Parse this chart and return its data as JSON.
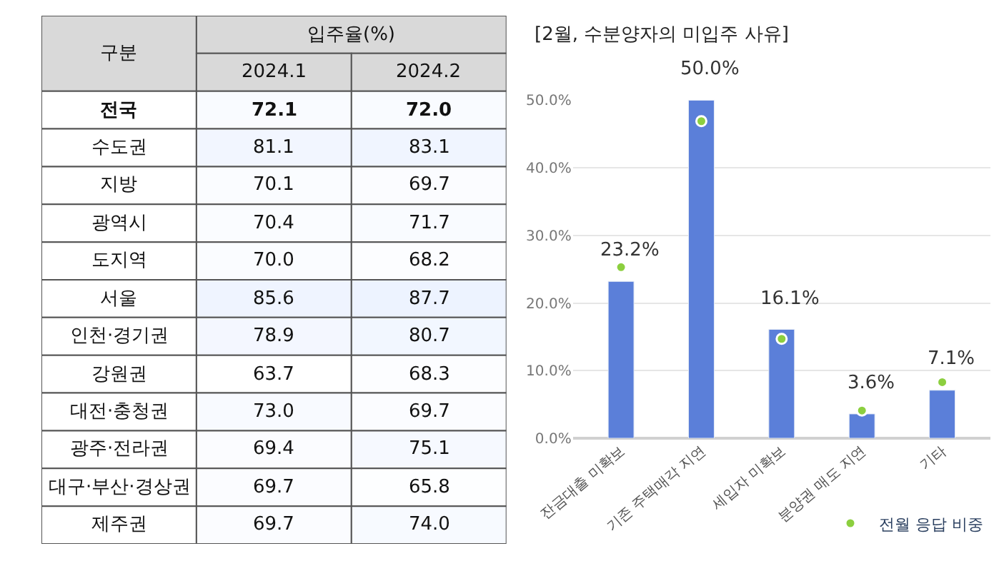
{
  "chart_data": [
    {
      "type": "heatmap",
      "title": "입주율(%)",
      "ylabel": "구분",
      "categories": [
        "2024.1",
        "2024.2"
      ],
      "y_categories": [
        "전국",
        "수도권",
        "지방",
        "광역시",
        "도지역",
        "서울",
        "인천·경기권",
        "강원권",
        "대전·충청권",
        "광주·전라권",
        "대구·부산·경상권",
        "제주권"
      ],
      "cells": [
        [
          72.1,
          72.0
        ],
        [
          81.1,
          83.1
        ],
        [
          70.1,
          69.7
        ],
        [
          70.4,
          71.7
        ],
        [
          70.0,
          68.2
        ],
        [
          85.6,
          87.7
        ],
        [
          78.9,
          80.7
        ],
        [
          63.7,
          68.3
        ],
        [
          73.0,
          69.7
        ],
        [
          69.4,
          75.1
        ],
        [
          69.7,
          65.8
        ],
        [
          69.7,
          74.0
        ]
      ],
      "cell_labels": [
        [
          "72.1",
          "72.0"
        ],
        [
          "81.1",
          "83.1"
        ],
        [
          "70.1",
          "69.7"
        ],
        [
          "70.4",
          "71.7"
        ],
        [
          "70.0",
          "68.2"
        ],
        [
          "85.6",
          "87.7"
        ],
        [
          "78.9",
          "80.7"
        ],
        [
          "63.7",
          "68.3"
        ],
        [
          "73.0",
          "69.7"
        ],
        [
          "69.4",
          "75.1"
        ],
        [
          "69.7",
          "65.8"
        ],
        [
          "69.7",
          "74.0"
        ]
      ]
    },
    {
      "type": "bar",
      "title": "[2월, 수분양자의 미입주 사유]",
      "categories": [
        "잔금대출 미확보",
        "기존 주택매각 지연",
        "세입자 미확보",
        "분양권 매도 지연",
        "기타"
      ],
      "series": [
        {
          "color": "#5b7fd9",
          "values": [
            23.2,
            50.0,
            16.1,
            3.6,
            7.1
          ],
          "value_labels": [
            "23.2%",
            "50.0%",
            "16.1%",
            "3.6%",
            "7.1%"
          ]
        },
        {
          "type": "scatter",
          "name": "전월 응답 비중",
          "color": "#8ccf3f",
          "values": [
            25.3,
            46.9,
            14.7,
            4.1,
            8.3
          ],
          "marker": "circle"
        }
      ],
      "ylim": [
        0,
        50
      ],
      "yticks": [
        {
          "value": 0,
          "label": "0.0%"
        },
        {
          "value": 10,
          "label": "10.0%"
        },
        {
          "value": 20,
          "label": "20.0%"
        },
        {
          "value": 30,
          "label": "30.0%"
        },
        {
          "value": 40,
          "label": "40.0%"
        },
        {
          "value": 50,
          "label": "50.0%"
        }
      ],
      "grid": "y",
      "legend": "bottom right"
    }
  ]
}
